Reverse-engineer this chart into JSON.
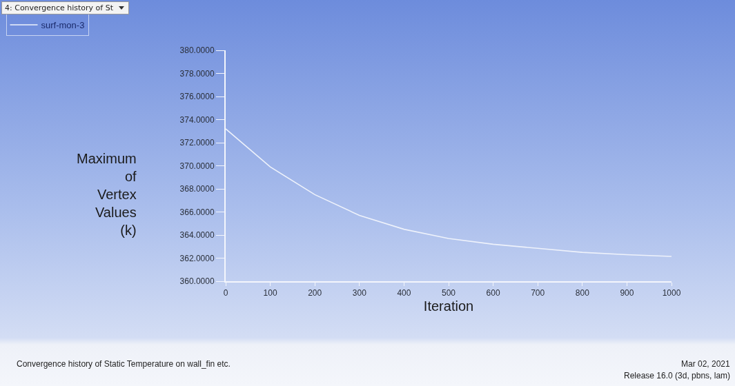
{
  "chart_data": {
    "type": "line",
    "xlabel": "Iteration",
    "ylabel": "Maximum of Vertex Values (k)",
    "x": [
      0,
      100,
      200,
      300,
      400,
      500,
      600,
      700,
      800,
      900,
      1000
    ],
    "series": [
      {
        "name": "surf-mon-3",
        "color": "#eef2fb",
        "values": [
          373.2,
          369.9,
          367.5,
          365.7,
          364.5,
          363.7,
          363.2,
          362.85,
          362.5,
          362.3,
          362.15
        ]
      }
    ],
    "xlim": [
      0,
      1000
    ],
    "xticks": [
      0,
      100,
      200,
      300,
      400,
      500,
      600,
      700,
      800,
      900,
      1000
    ],
    "ylim": [
      360,
      380
    ],
    "yticks": [
      {
        "value": 360,
        "label": "360.0000"
      },
      {
        "value": 362,
        "label": "362.0000"
      },
      {
        "value": 364,
        "label": "364.0000"
      },
      {
        "value": 366,
        "label": "366.0000"
      },
      {
        "value": 368,
        "label": "368.0000"
      },
      {
        "value": 370,
        "label": "370.0000"
      },
      {
        "value": 372,
        "label": "372.0000"
      },
      {
        "value": 374,
        "label": "374.0000"
      },
      {
        "value": 376,
        "label": "376.0000"
      },
      {
        "value": 378,
        "label": "378.0000"
      },
      {
        "value": 380,
        "label": "380.0000"
      }
    ],
    "grid": false,
    "legend": "top left",
    "marker": "none",
    "line_style": "solid",
    "annotations": [
      "4: Convergence history of St",
      "Convergence history of Static Temperature on wall_fin etc.",
      "Mar 02, 2021",
      "Release 16.0 (3d, pbns, lam)"
    ]
  }
}
